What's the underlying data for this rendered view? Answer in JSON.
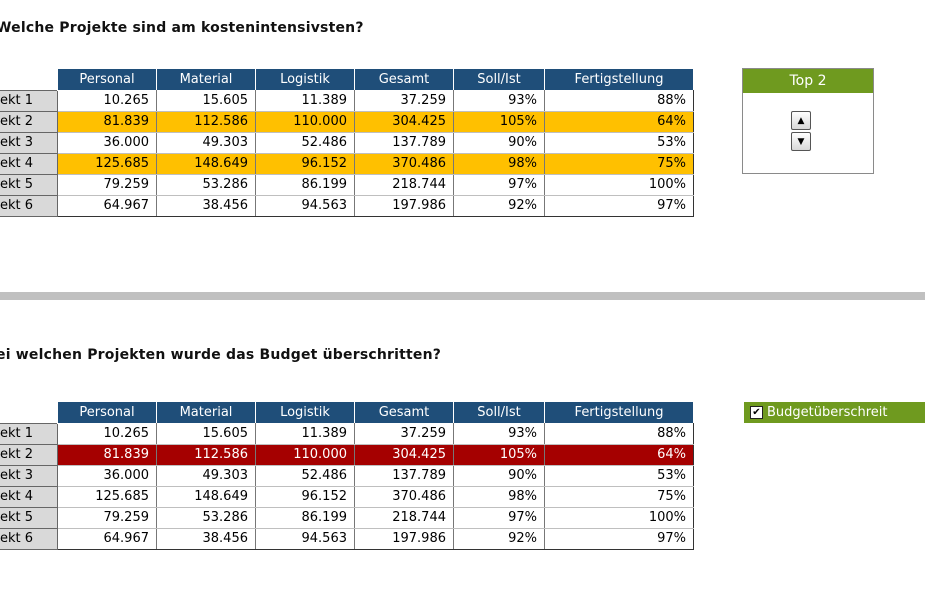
{
  "section1": {
    "heading": "Welche Projekte sind am kostenintensivsten?",
    "columns": [
      "Personal",
      "Material",
      "Logistik",
      "Gesamt",
      "Soll/Ist",
      "Fertigstellung"
    ],
    "rows": [
      {
        "label": "ekt 1",
        "cells": [
          "10.265",
          "15.605",
          "11.389",
          "37.259",
          "93%",
          "88%"
        ]
      },
      {
        "label": "ekt 2",
        "cells": [
          "81.839",
          "112.586",
          "110.000",
          "304.425",
          "105%",
          "64%"
        ]
      },
      {
        "label": "ekt 3",
        "cells": [
          "36.000",
          "49.303",
          "52.486",
          "137.789",
          "90%",
          "53%"
        ]
      },
      {
        "label": "ekt 4",
        "cells": [
          "125.685",
          "148.649",
          "96.152",
          "370.486",
          "98%",
          "75%"
        ]
      },
      {
        "label": "ekt 5",
        "cells": [
          "79.259",
          "53.286",
          "86.199",
          "218.744",
          "97%",
          "100%"
        ]
      },
      {
        "label": "ekt 6",
        "cells": [
          "64.967",
          "38.456",
          "94.563",
          "197.986",
          "92%",
          "97%"
        ]
      }
    ],
    "highlight_color": "#ffc000"
  },
  "top_panel": {
    "title": "Top 2",
    "up_icon": "arrow-up-icon",
    "down_icon": "arrow-down-icon"
  },
  "section2": {
    "heading": "ei welchen Projekten wurde das Budget überschritten?",
    "columns": [
      "Personal",
      "Material",
      "Logistik",
      "Gesamt",
      "Soll/Ist",
      "Fertigstellung"
    ],
    "rows": [
      {
        "label": "ekt 1",
        "cells": [
          "10.265",
          "15.605",
          "11.389",
          "37.259",
          "93%",
          "88%"
        ]
      },
      {
        "label": "ekt 2",
        "cells": [
          "81.839",
          "112.586",
          "110.000",
          "304.425",
          "105%",
          "64%"
        ]
      },
      {
        "label": "ekt 3",
        "cells": [
          "36.000",
          "49.303",
          "52.486",
          "137.789",
          "90%",
          "53%"
        ]
      },
      {
        "label": "ekt 4",
        "cells": [
          "125.685",
          "148.649",
          "96.152",
          "370.486",
          "98%",
          "75%"
        ]
      },
      {
        "label": "ekt 5",
        "cells": [
          "79.259",
          "53.286",
          "86.199",
          "218.744",
          "97%",
          "100%"
        ]
      },
      {
        "label": "ekt 6",
        "cells": [
          "64.967",
          "38.456",
          "94.563",
          "197.986",
          "92%",
          "97%"
        ]
      }
    ],
    "highlight_color": "#a50000"
  },
  "budget_checkbox": {
    "label": "Budgetüberschreit",
    "checked": true
  },
  "colors": {
    "header_blue": "#1f4e79",
    "accent_green": "#6f9a1f",
    "divider_gray": "#c0c0c0"
  }
}
